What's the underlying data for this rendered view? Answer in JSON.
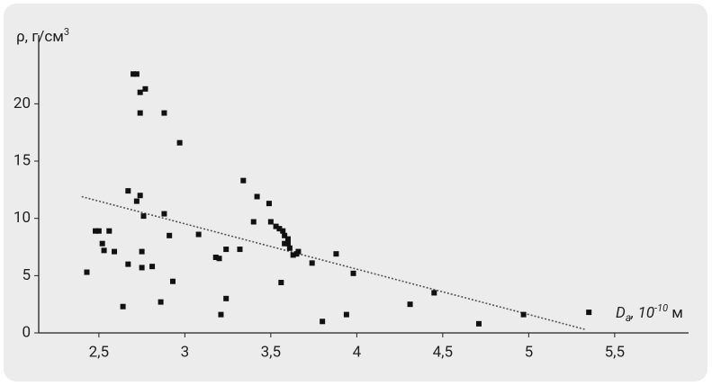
{
  "chart_data": {
    "type": "scatter",
    "y_label": [
      "ρ, г/см",
      "3"
    ],
    "x_label": [
      "D",
      "a",
      ", 10",
      "-10",
      " м"
    ],
    "x": [
      2.43,
      2.48,
      2.5,
      2.52,
      2.53,
      2.56,
      2.59,
      2.64,
      2.67,
      2.67,
      2.7,
      2.72,
      2.72,
      2.74,
      2.74,
      2.74,
      2.76,
      2.75,
      2.75,
      2.77,
      2.81,
      2.86,
      2.88,
      2.88,
      2.91,
      2.93,
      2.97,
      3.08,
      3.18,
      3.2,
      3.21,
      3.24,
      3.24,
      3.32,
      3.34,
      3.4,
      3.42,
      3.49,
      3.5,
      3.53,
      3.55,
      3.56,
      3.57,
      3.58,
      3.6,
      3.6,
      3.58,
      3.61,
      3.63,
      3.65,
      3.66,
      3.74,
      3.8,
      3.88,
      3.94,
      3.98,
      4.31,
      4.45,
      4.71,
      4.97,
      5.35
    ],
    "values": [
      5.3,
      8.9,
      8.9,
      7.8,
      7.2,
      8.9,
      7.1,
      2.3,
      12.4,
      6.0,
      22.6,
      22.6,
      11.5,
      12.0,
      21.0,
      19.2,
      10.2,
      7.1,
      5.7,
      21.3,
      5.8,
      2.7,
      19.2,
      10.4,
      8.5,
      4.5,
      16.6,
      8.6,
      6.6,
      6.5,
      1.6,
      7.3,
      3.0,
      7.3,
      13.3,
      9.7,
      11.9,
      11.3,
      9.7,
      9.3,
      9.1,
      4.4,
      8.9,
      8.5,
      8.2,
      7.8,
      7.8,
      7.4,
      6.8,
      6.9,
      7.1,
      6.1,
      1.0,
      6.9,
      1.6,
      5.2,
      2.5,
      3.5,
      0.8,
      1.6,
      1.8
    ],
    "color": "#111111",
    "trend_line": {
      "x": [
        2.4,
        5.33
      ],
      "values": [
        11.9,
        0.3
      ],
      "color": "#555555"
    },
    "xlim": [
      2.15,
      5.93
    ],
    "ylim": [
      0,
      26
    ],
    "xticks": [
      {
        "value": 2.5,
        "label": "2,5"
      },
      3,
      {
        "value": 3.5,
        "label": "3,5"
      },
      4,
      {
        "value": 4.5,
        "label": "4,5"
      },
      5,
      {
        "value": 5.5,
        "label": "5,5"
      }
    ],
    "yticks": [
      0,
      5,
      10,
      15,
      20
    ]
  }
}
